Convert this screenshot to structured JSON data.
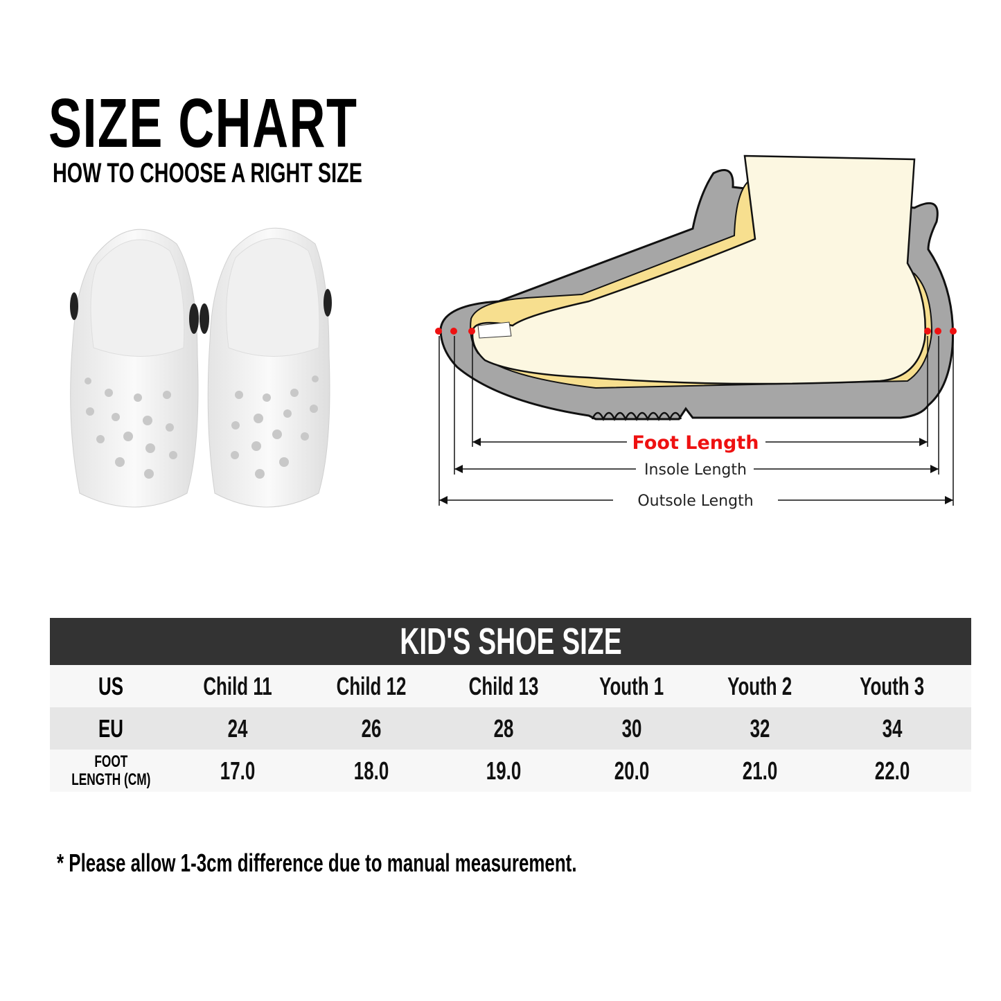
{
  "header": {
    "title": "SIZE CHART",
    "subtitle": "HOW TO CHOOSE A RIGHT SIZE"
  },
  "diagram": {
    "foot_length": "Foot Length",
    "insole_length": "Insole Length",
    "outsole_length": "Outsole Length",
    "colors": {
      "foot_length": "#ee1111",
      "marker": "#ee1111",
      "sole": "#a6a6a6",
      "insole": "#f7df8f",
      "foot": "#fcf7e1"
    }
  },
  "table": {
    "title": "KID'S SHOE SIZE",
    "rows": [
      {
        "label": "US",
        "values": [
          "Child 11",
          "Child 12",
          "Child 13",
          "Youth 1",
          "Youth 2",
          "Youth 3"
        ]
      },
      {
        "label": "EU",
        "values": [
          "24",
          "26",
          "28",
          "30",
          "32",
          "34"
        ]
      },
      {
        "label_line1": "FOOT",
        "label_line2": "LENGTH (CM)",
        "values": [
          "17.0",
          "18.0",
          "19.0",
          "20.0",
          "21.0",
          "22.0"
        ]
      }
    ],
    "colors": {
      "header_bg": "#333333",
      "row_light": "#f7f7f7",
      "row_dark": "#e6e6e6"
    }
  },
  "footnote": "* Please allow 1-3cm difference due to manual measurement."
}
